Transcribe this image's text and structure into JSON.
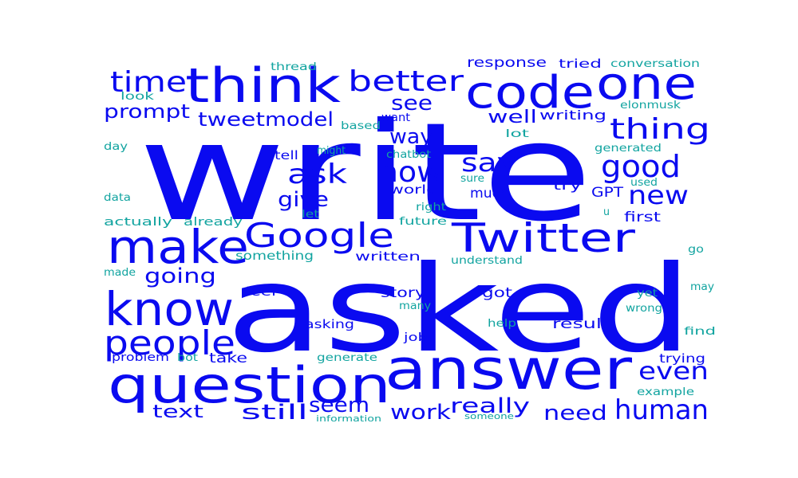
{
  "colors": {
    "primary": "#0a0af0",
    "secondary": "#12a4a0"
  },
  "words": [
    {
      "text": "write",
      "tone": "primary"
    },
    {
      "text": "asked",
      "tone": "primary"
    },
    {
      "text": "answer",
      "tone": "primary"
    },
    {
      "text": "question",
      "tone": "primary"
    },
    {
      "text": "think",
      "tone": "primary"
    },
    {
      "text": "code",
      "tone": "primary"
    },
    {
      "text": "one",
      "tone": "primary"
    },
    {
      "text": "Twitter",
      "tone": "primary"
    },
    {
      "text": "make",
      "tone": "primary"
    },
    {
      "text": "know",
      "tone": "primary"
    },
    {
      "text": "Google",
      "tone": "primary"
    },
    {
      "text": "people",
      "tone": "primary"
    },
    {
      "text": "better",
      "tone": "primary"
    },
    {
      "text": "time",
      "tone": "primary"
    },
    {
      "text": "thing",
      "tone": "primary"
    },
    {
      "text": "now",
      "tone": "primary"
    },
    {
      "text": "good",
      "tone": "primary"
    },
    {
      "text": "ask",
      "tone": "primary"
    },
    {
      "text": "say",
      "tone": "primary"
    },
    {
      "text": "new",
      "tone": "primary"
    },
    {
      "text": "human",
      "tone": "primary"
    },
    {
      "text": "even",
      "tone": "primary"
    },
    {
      "text": "see",
      "tone": "primary"
    },
    {
      "text": "prompt",
      "tone": "primary"
    },
    {
      "text": "tweet",
      "tone": "primary"
    },
    {
      "text": "model",
      "tone": "primary"
    },
    {
      "text": "going",
      "tone": "primary"
    },
    {
      "text": "give",
      "tone": "primary"
    },
    {
      "text": "way",
      "tone": "primary"
    },
    {
      "text": "work",
      "tone": "primary"
    },
    {
      "text": "really",
      "tone": "primary"
    },
    {
      "text": "seem",
      "tone": "primary"
    },
    {
      "text": "still",
      "tone": "primary"
    },
    {
      "text": "need",
      "tone": "primary"
    },
    {
      "text": "text",
      "tone": "primary"
    },
    {
      "text": "well",
      "tone": "primary"
    },
    {
      "text": "response",
      "tone": "primary"
    },
    {
      "text": "much",
      "tone": "primary"
    },
    {
      "text": "try",
      "tone": "primary"
    },
    {
      "text": "GPT",
      "tone": "primary"
    },
    {
      "text": "first",
      "tone": "primary"
    },
    {
      "text": "result",
      "tone": "primary"
    },
    {
      "text": "got",
      "tone": "primary"
    },
    {
      "text": "story",
      "tone": "primary"
    },
    {
      "text": "take",
      "tone": "primary"
    },
    {
      "text": "writing",
      "tone": "primary"
    },
    {
      "text": "tried",
      "tone": "primary"
    },
    {
      "text": "written",
      "tone": "primary"
    },
    {
      "text": "world",
      "tone": "primary"
    },
    {
      "text": "tell",
      "tone": "primary"
    },
    {
      "text": "feel",
      "tone": "primary"
    },
    {
      "text": "trying",
      "tone": "primary"
    },
    {
      "text": "want",
      "tone": "primary"
    },
    {
      "text": "job",
      "tone": "primary"
    },
    {
      "text": "asking",
      "tone": "primary"
    },
    {
      "text": "problem",
      "tone": "primary"
    },
    {
      "text": "actually",
      "tone": "secondary"
    },
    {
      "text": "already",
      "tone": "secondary"
    },
    {
      "text": "thread",
      "tone": "secondary"
    },
    {
      "text": "conversation",
      "tone": "secondary"
    },
    {
      "text": "look",
      "tone": "secondary"
    },
    {
      "text": "elonmusk",
      "tone": "secondary"
    },
    {
      "text": "based",
      "tone": "secondary"
    },
    {
      "text": "lot",
      "tone": "secondary"
    },
    {
      "text": "day",
      "tone": "secondary"
    },
    {
      "text": "might",
      "tone": "secondary"
    },
    {
      "text": "chatbot",
      "tone": "secondary"
    },
    {
      "text": "generated",
      "tone": "secondary"
    },
    {
      "text": "sure",
      "tone": "secondary"
    },
    {
      "text": "data",
      "tone": "secondary"
    },
    {
      "text": "right",
      "tone": "secondary"
    },
    {
      "text": "used",
      "tone": "secondary"
    },
    {
      "text": "let",
      "tone": "secondary"
    },
    {
      "text": "u",
      "tone": "secondary"
    },
    {
      "text": "future",
      "tone": "secondary"
    },
    {
      "text": "something",
      "tone": "secondary"
    },
    {
      "text": "go",
      "tone": "secondary"
    },
    {
      "text": "understand",
      "tone": "secondary"
    },
    {
      "text": "made",
      "tone": "secondary"
    },
    {
      "text": "yet",
      "tone": "secondary"
    },
    {
      "text": "may",
      "tone": "secondary"
    },
    {
      "text": "many",
      "tone": "secondary"
    },
    {
      "text": "wrong",
      "tone": "secondary"
    },
    {
      "text": "help",
      "tone": "secondary"
    },
    {
      "text": "find",
      "tone": "secondary"
    },
    {
      "text": "bot",
      "tone": "secondary"
    },
    {
      "text": "generate",
      "tone": "secondary"
    },
    {
      "text": "example",
      "tone": "secondary"
    },
    {
      "text": "information",
      "tone": "secondary"
    },
    {
      "text": "someone",
      "tone": "secondary"
    }
  ]
}
